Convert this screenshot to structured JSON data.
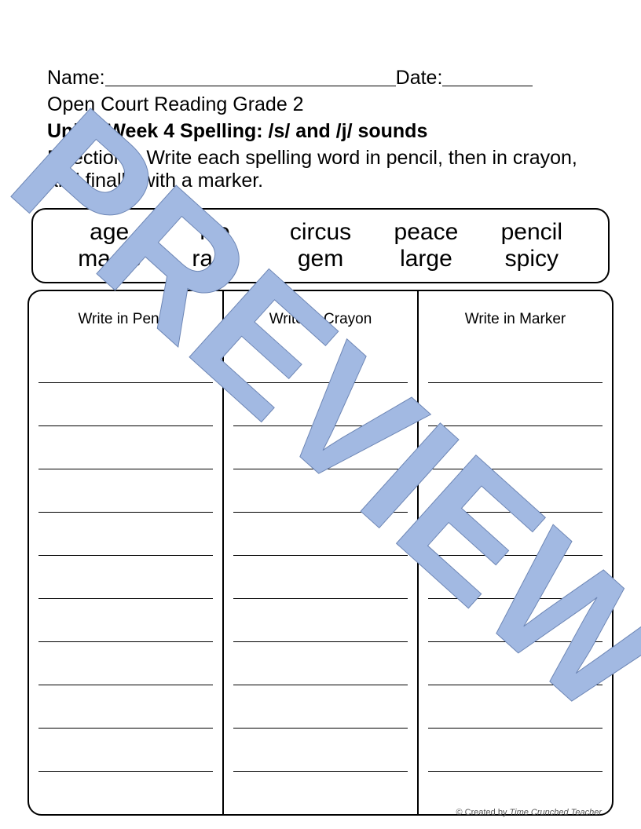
{
  "header": {
    "name_label": "Name:",
    "date_label": "Date:",
    "subtitle": "Open Court Reading Grade 2",
    "unit_bold": "Unit 3 Week 4 Spelling:  /s/ and /j/ sounds",
    "directions": "Directions- Write each spelling word in pencil, then in crayon, and finally with a marker."
  },
  "words": {
    "row1": [
      "age",
      "ice",
      "circus",
      "peace",
      "pencil"
    ],
    "row2": [
      "magic",
      "race",
      "gem",
      "large",
      "spicy"
    ]
  },
  "columns": {
    "col1": "Write in Pencil",
    "col2": "Write in Crayon",
    "col3": "Write in Marker"
  },
  "footer": {
    "prefix": "© Created by ",
    "author": "Time Crunched Teacher"
  },
  "watermark": {
    "text": "PREVIEW",
    "fill": "#a2b9e2",
    "stroke": "#6d86b5"
  }
}
